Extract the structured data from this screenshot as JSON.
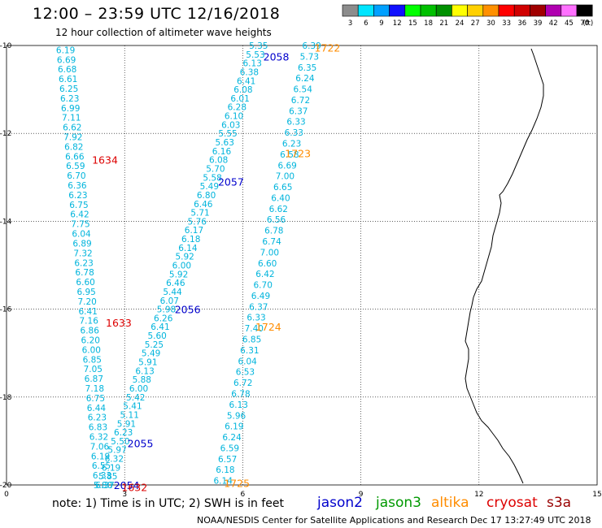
{
  "header": {
    "title": "12:00 – 23:59 UTC 12/16/2018",
    "subtitle": "12 hour collection of altimeter wave heights"
  },
  "colorbar": {
    "unit_label": "(ft)",
    "bins": [
      {
        "label": "3",
        "color": "#8c8c8c"
      },
      {
        "label": "6",
        "color": "#00e5ff"
      },
      {
        "label": "9",
        "color": "#00a0ff"
      },
      {
        "label": "12",
        "color": "#1010ff"
      },
      {
        "label": "15",
        "color": "#00ff00"
      },
      {
        "label": "18",
        "color": "#00c000"
      },
      {
        "label": "21",
        "color": "#009000"
      },
      {
        "label": "24",
        "color": "#ffff00"
      },
      {
        "label": "27",
        "color": "#ffd000"
      },
      {
        "label": "30",
        "color": "#ff9000"
      },
      {
        "label": "33",
        "color": "#ff0000"
      },
      {
        "label": "36",
        "color": "#d00000"
      },
      {
        "label": "39",
        "color": "#a00000"
      },
      {
        "label": "42",
        "color": "#b000b0"
      },
      {
        "label": "45",
        "color": "#ff70ff"
      },
      {
        "label": "70",
        "color": "#000000"
      }
    ]
  },
  "axes": {
    "x_ticks": [
      "0",
      "3",
      "6",
      "9",
      "12",
      "15"
    ],
    "y_ticks": [
      "-10",
      "-12",
      "-14",
      "-16",
      "-18",
      "-20"
    ]
  },
  "satellites": [
    {
      "name": "jason2",
      "color": "#0000cc"
    },
    {
      "name": "jason3",
      "color": "#009900"
    },
    {
      "name": "altika",
      "color": "#ff8c00"
    },
    {
      "name": "cryosat",
      "color": "#dd0000"
    },
    {
      "name": "s3a",
      "color": "#990000"
    }
  ],
  "time_labels": [
    {
      "text": "1722",
      "sat": "altika",
      "lon": 8.15,
      "lat": -10.05
    },
    {
      "text": "1723",
      "sat": "altika",
      "lon": 7.4,
      "lat": -12.45
    },
    {
      "text": "1724",
      "sat": "altika",
      "lon": 6.65,
      "lat": -16.4
    },
    {
      "text": "1725",
      "sat": "altika",
      "lon": 5.85,
      "lat": -19.95
    },
    {
      "text": "2058",
      "sat": "jason2",
      "lon": 6.85,
      "lat": -10.25
    },
    {
      "text": "2057",
      "sat": "jason2",
      "lon": 5.7,
      "lat": -13.1
    },
    {
      "text": "2056",
      "sat": "jason2",
      "lon": 4.6,
      "lat": -16.0
    },
    {
      "text": "2055",
      "sat": "jason2",
      "lon": 3.4,
      "lat": -19.05
    },
    {
      "text": "2054",
      "sat": "jason2",
      "lon": 3.05,
      "lat": -20.0
    },
    {
      "text": "1634",
      "sat": "cryosat",
      "lon": 2.5,
      "lat": -12.6
    },
    {
      "text": "1633",
      "sat": "cryosat",
      "lon": 2.85,
      "lat": -16.3
    },
    {
      "text": "1632",
      "sat": "cryosat",
      "lon": 3.25,
      "lat": -20.05
    }
  ],
  "tracks": [
    {
      "sat": "cryosat",
      "lon_start": 1.5,
      "lat_start": -10.1,
      "lon_end": 2.45,
      "lat_end": -20.0,
      "values": [
        "6.19",
        "6.69",
        "6.68",
        "6.61",
        "6.25",
        "6.23",
        "6.99",
        "7.11",
        "6.62",
        "7.92",
        "6.82",
        "6.66",
        "6.59",
        "6.70",
        "6.36",
        "6.23",
        "6.75",
        "6.42",
        "7.75",
        "6.04",
        "6.89",
        "7.32",
        "6.23",
        "6.78",
        "6.60",
        "6.95",
        "7.20",
        "6.41",
        "7.16",
        "6.86",
        "6.20",
        "6.00",
        "6.85",
        "7.05",
        "6.87",
        "7.18",
        "6.75",
        "6.44",
        "6.23",
        "6.83",
        "6.32",
        "7.06",
        "6.19",
        "6.55",
        "6.33",
        "5.80"
      ]
    },
    {
      "sat": "jason2",
      "lon_start": 6.4,
      "lat_start": -10.0,
      "lon_end": 2.5,
      "lat_end": -20.0,
      "values": [
        "5.35",
        "5.53",
        "6.13",
        "6.38",
        "6.41",
        "6.08",
        "6.01",
        "6.28",
        "6.10",
        "6.03",
        "5.55",
        "5.63",
        "6.16",
        "6.08",
        "5.70",
        "5.58",
        "5.49",
        "6.80",
        "6.46",
        "5.71",
        "5.76",
        "6.17",
        "6.18",
        "6.14",
        "5.92",
        "6.00",
        "5.92",
        "6.46",
        "5.44",
        "6.07",
        "5.98",
        "6.26",
        "6.41",
        "5.60",
        "5.25",
        "5.49",
        "5.91",
        "6.13",
        "5.88",
        "6.00",
        "5.42",
        "5.41",
        "5.11",
        "5.91",
        "6.23",
        "5.50",
        "5.97",
        "6.32",
        "6.19",
        "5.85",
        "6.37"
      ]
    },
    {
      "sat": "altika",
      "lon_start": 7.75,
      "lat_start": -10.0,
      "lon_end": 5.5,
      "lat_end": -19.9,
      "values": [
        "6.39",
        "5.73",
        "6.35",
        "6.24",
        "6.54",
        "6.72",
        "6.37",
        "6.33",
        "6.33",
        "6.23",
        "6.58",
        "6.69",
        "7.00",
        "6.65",
        "6.40",
        "6.62",
        "6.56",
        "6.78",
        "6.74",
        "7.00",
        "6.60",
        "6.42",
        "6.70",
        "6.49",
        "6.37",
        "6.33",
        "7.40",
        "6.85",
        "6.31",
        "6.04",
        "6.53",
        "6.72",
        "6.78",
        "6.13",
        "5.96",
        "6.19",
        "6.24",
        "6.59",
        "6.57",
        "6.18",
        "6.14"
      ]
    }
  ]
}
